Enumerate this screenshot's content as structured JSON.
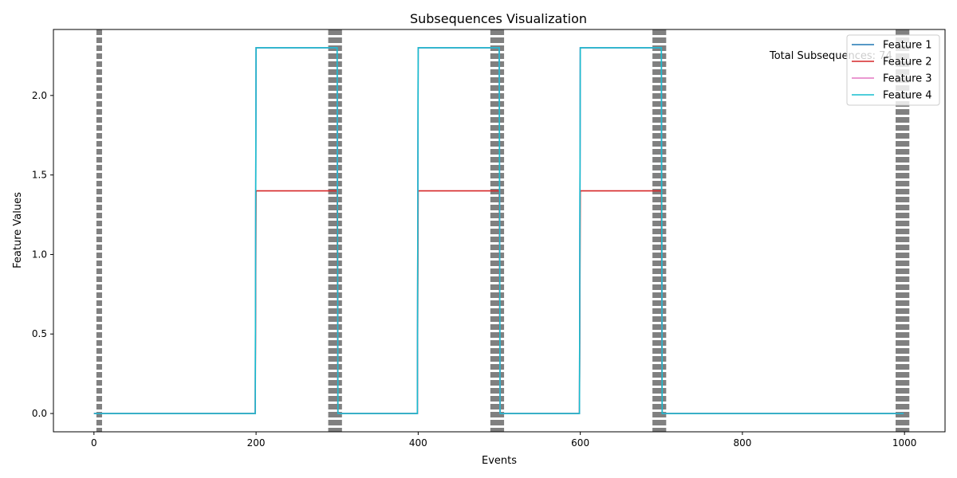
{
  "chart_data": {
    "type": "line",
    "title": "Subsequences Visualization",
    "xlabel": "Events",
    "ylabel": "Feature Values",
    "xlim": [
      -50,
      1050
    ],
    "ylim": [
      -0.115,
      2.415
    ],
    "x_ticks": [
      0,
      200,
      400,
      600,
      800,
      1000
    ],
    "x_tick_labels": [
      "0",
      "200",
      "400",
      "600",
      "800",
      "1000"
    ],
    "y_ticks": [
      0.0,
      0.5,
      1.0,
      1.5,
      2.0
    ],
    "y_tick_labels": [
      "0.0",
      "0.5",
      "1.0",
      "1.5",
      "2.0"
    ],
    "grid": false,
    "legend_position": "top-right",
    "annotation": "Total Subsequences: 74",
    "boundaries_color": "#808080",
    "boundaries": [
      4,
      5,
      6,
      7,
      8,
      9,
      290,
      291,
      292,
      293,
      294,
      295,
      296,
      297,
      298,
      299,
      300,
      301,
      302,
      303,
      304,
      305,
      490,
      491,
      492,
      493,
      494,
      495,
      496,
      497,
      498,
      499,
      500,
      501,
      502,
      503,
      504,
      505,
      690,
      691,
      692,
      693,
      694,
      695,
      696,
      697,
      698,
      699,
      700,
      701,
      702,
      703,
      704,
      705,
      990,
      991,
      992,
      993,
      994,
      995,
      996,
      997,
      998,
      999,
      1000,
      1001,
      1002,
      1003,
      1004,
      1005
    ],
    "series": [
      {
        "name": "Feature 1",
        "color": "#1f77b4",
        "x": [
          0,
          199,
          200,
          300,
          301,
          399,
          400,
          500,
          501,
          599,
          600,
          700,
          701,
          999
        ],
        "y": [
          0,
          0,
          2.3,
          2.3,
          0,
          0,
          2.3,
          2.3,
          0,
          0,
          2.3,
          2.3,
          0,
          0
        ]
      },
      {
        "name": "Feature 2",
        "color": "#d62728",
        "x": [
          0,
          199,
          200,
          300,
          301,
          399,
          400,
          500,
          501,
          599,
          600,
          700,
          701,
          999
        ],
        "y": [
          0,
          0,
          1.4,
          1.4,
          0,
          0,
          1.4,
          1.4,
          0,
          0,
          1.4,
          1.4,
          0,
          0
        ]
      },
      {
        "name": "Feature 3",
        "color": "#e377c2",
        "x": [
          0,
          199,
          200,
          300,
          301,
          399,
          400,
          500,
          501,
          599,
          600,
          700,
          701,
          999
        ],
        "y": [
          0,
          0,
          2.3,
          2.3,
          0,
          0,
          2.3,
          2.3,
          0,
          0,
          2.3,
          2.3,
          0,
          0
        ]
      },
      {
        "name": "Feature 4",
        "color": "#17becf",
        "x": [
          0,
          199,
          200,
          300,
          301,
          399,
          400,
          500,
          501,
          599,
          600,
          700,
          701,
          999
        ],
        "y": [
          0,
          0,
          2.3,
          2.3,
          0,
          0,
          2.3,
          2.3,
          0,
          0,
          2.3,
          2.3,
          0,
          0
        ]
      }
    ]
  }
}
